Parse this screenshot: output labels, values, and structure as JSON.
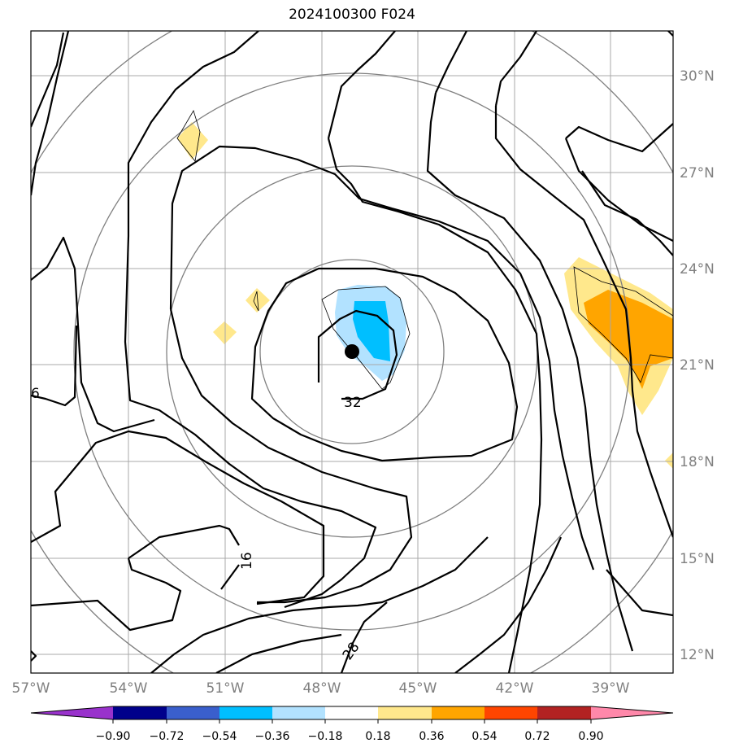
{
  "title": "2024100300 F024",
  "map": {
    "lon_labels": [
      "57°W",
      "54°W",
      "51°W",
      "48°W",
      "45°W",
      "42°W",
      "39°W"
    ],
    "lat_labels": [
      "30°N",
      "27°N",
      "24°N",
      "21°N",
      "18°N",
      "15°N",
      "12°N"
    ],
    "contour_labels": [
      "6",
      "16",
      "32",
      "28"
    ],
    "center_marker": "storm-center-dot"
  },
  "colorbar": {
    "ticks": [
      "−0.90",
      "−0.72",
      "−0.54",
      "−0.36",
      "−0.18",
      "0.18",
      "0.36",
      "0.54",
      "0.72",
      "0.90"
    ],
    "colors": [
      "#9932CC",
      "#00008B",
      "#3A5FCD",
      "#00BFFF",
      "#B2E2FF",
      "#FFFFFF",
      "#FFE88C",
      "#FFA500",
      "#FF4500",
      "#B22222",
      "#FF88AA"
    ]
  }
}
